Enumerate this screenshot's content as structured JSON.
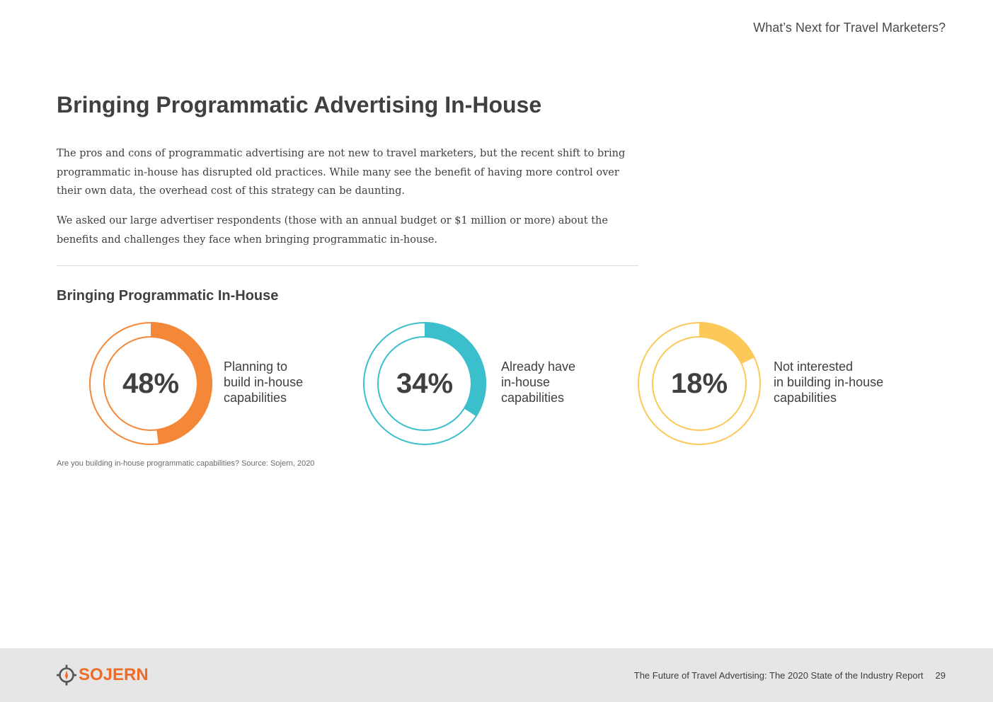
{
  "header": {
    "section_title": "What’s Next for Travel Marketers?"
  },
  "main": {
    "title": "Bringing Programmatic Advertising In-House",
    "paragraphs": [
      "The pros and cons of programmatic advertising are not new to travel marketers, but the recent shift to bring programmatic in-house has disrupted old practices. While many see the benefit of having more control over their own data, the overhead cost of this strategy can be daunting.",
      "We asked our large advertiser respondents (those with an annual budget or $1 million or more) about the benefits and challenges they face when bringing programmatic in-house."
    ]
  },
  "chart_data": {
    "type": "pie",
    "title": "Bringing Programmatic In-House",
    "items": [
      {
        "value": 48,
        "value_label": "48%",
        "label_lines": [
          "Planning to",
          "build in-house",
          "capabilities"
        ],
        "color": "#f48838"
      },
      {
        "value": 34,
        "value_label": "34%",
        "label_lines": [
          "Already have",
          "in-house",
          "capabilities"
        ],
        "color": "#3bbfcc"
      },
      {
        "value": 18,
        "value_label": "18%",
        "label_lines": [
          "Not interested",
          "in building in-house",
          "capabilities"
        ],
        "color": "#fcc858"
      }
    ],
    "source": "Are you building in-house programmatic capabilities? Source: Sojern, 2020"
  },
  "footer": {
    "logo_text": "SOJERN",
    "report_title": "The Future of Travel Advertising: The 2020 State of the Industry Report",
    "page_number": "29",
    "brand_color": "#ef6c28"
  }
}
